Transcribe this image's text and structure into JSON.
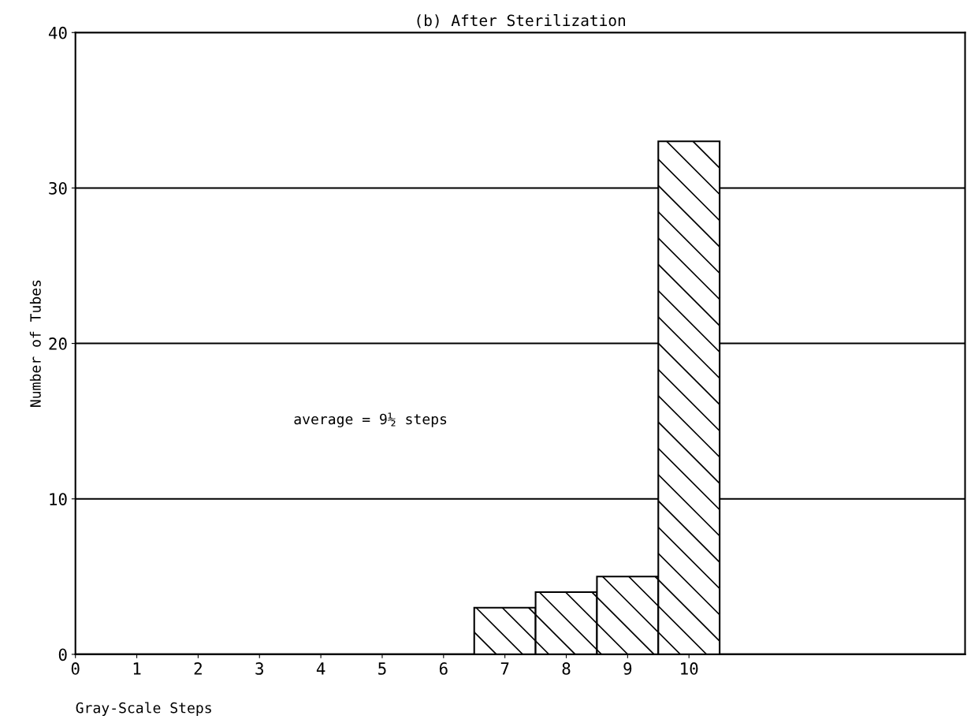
{
  "chart_data": {
    "type": "histogram",
    "title": "(b) After Sterilization",
    "xlabel": "Gray-Scale Steps",
    "ylabel": "Number of Tubes",
    "bins": [
      6.5,
      7.5,
      8.5,
      9.5,
      10.5
    ],
    "values": [
      3,
      4,
      5,
      33
    ],
    "color": "#000000",
    "xlim": [
      0,
      14.5
    ],
    "xticks": [
      0,
      1,
      2,
      3,
      4,
      5,
      6,
      7,
      8,
      9,
      10
    ],
    "ylim": [
      0,
      40
    ],
    "yticks": [
      0,
      10,
      20,
      30,
      40
    ],
    "grid": "y",
    "annotations": [
      "average = 9½ steps"
    ]
  }
}
